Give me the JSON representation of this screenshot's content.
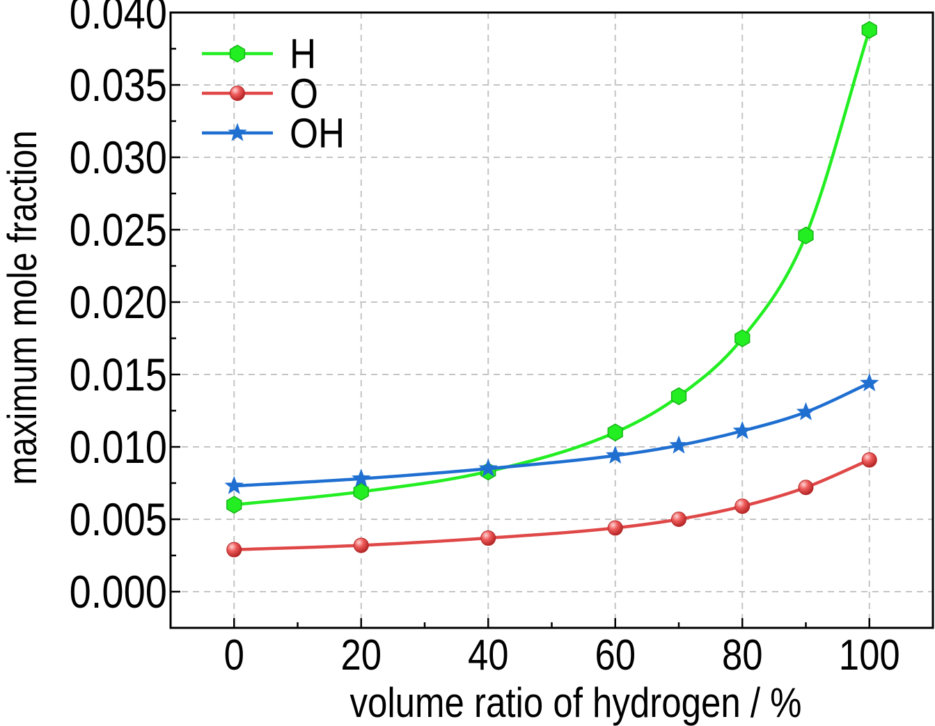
{
  "chart_data": {
    "type": "line",
    "xlabel": "volume ratio of hydrogen / %",
    "ylabel": "maximum mole fraction",
    "xlim": [
      -10,
      110
    ],
    "ylim": [
      -0.0025,
      0.04
    ],
    "x_ticks": [
      0,
      20,
      40,
      60,
      80,
      100
    ],
    "x_tick_labels": [
      "0",
      "20",
      "40",
      "60",
      "80",
      "100"
    ],
    "y_ticks": [
      0.0,
      0.005,
      0.01,
      0.015,
      0.02,
      0.025,
      0.03,
      0.035,
      0.04
    ],
    "y_tick_labels": [
      "0.000",
      "0.005",
      "0.010",
      "0.015",
      "0.020",
      "0.025",
      "0.030",
      "0.035",
      "0.040"
    ],
    "grid": true,
    "legend_position": "top-left",
    "series": [
      {
        "name": "H",
        "color": "#22ee22",
        "marker": "hexagon",
        "x": [
          0,
          20,
          40,
          60,
          70,
          80,
          90,
          100
        ],
        "y": [
          0.006,
          0.0069,
          0.0083,
          0.011,
          0.0135,
          0.0175,
          0.0246,
          0.0388
        ]
      },
      {
        "name": "O",
        "color": "#e04848",
        "marker": "circle",
        "x": [
          0,
          20,
          40,
          60,
          70,
          80,
          90,
          100
        ],
        "y": [
          0.0029,
          0.0032,
          0.0037,
          0.0044,
          0.005,
          0.0059,
          0.0072,
          0.0091
        ]
      },
      {
        "name": "OH",
        "color": "#1f6fd1",
        "marker": "star",
        "x": [
          0,
          20,
          40,
          60,
          70,
          80,
          90,
          100
        ],
        "y": [
          0.0073,
          0.0078,
          0.0085,
          0.0094,
          0.0101,
          0.0111,
          0.0124,
          0.0144
        ]
      }
    ]
  }
}
